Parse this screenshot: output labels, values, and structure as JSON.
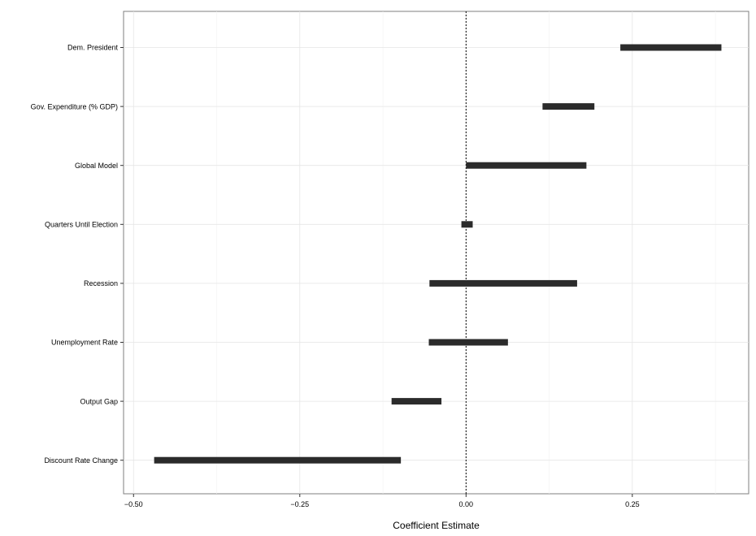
{
  "chart_data": {
    "type": "interval",
    "orientation": "horizontal",
    "xlabel": "Coefficient Estimate",
    "ylabel": "",
    "title": "",
    "xlim": [
      -0.515,
      0.425
    ],
    "x_ticks": [
      {
        "value": -0.5,
        "label": "−0.50"
      },
      {
        "value": -0.25,
        "label": "−0.25"
      },
      {
        "value": 0.0,
        "label": "0.00"
      },
      {
        "value": 0.25,
        "label": "0.25"
      }
    ],
    "reference_line": {
      "value": 0.0,
      "style": "dotted"
    },
    "grid": true,
    "bar_color": "#2b2b2b",
    "categories": [
      "Dem. President",
      "Gov. Expenditure (% GDP)",
      "Global Model",
      "Quarters Until Election",
      "Recession",
      "Unemployment Rate",
      "Output Gap",
      "Discount Rate Change"
    ],
    "intervals": [
      {
        "category": "Dem. President",
        "low": 0.232,
        "high": 0.384
      },
      {
        "category": "Gov. Expenditure (% GDP)",
        "low": 0.115,
        "high": 0.193
      },
      {
        "category": "Global Model",
        "low": 0.0,
        "high": 0.181
      },
      {
        "category": "Quarters Until Election",
        "low": -0.007,
        "high": 0.01
      },
      {
        "category": "Recession",
        "low": -0.055,
        "high": 0.167
      },
      {
        "category": "Unemployment Rate",
        "low": -0.056,
        "high": 0.063
      },
      {
        "category": "Output Gap",
        "low": -0.112,
        "high": -0.037
      },
      {
        "category": "Discount Rate Change",
        "low": -0.469,
        "high": -0.098
      }
    ]
  }
}
